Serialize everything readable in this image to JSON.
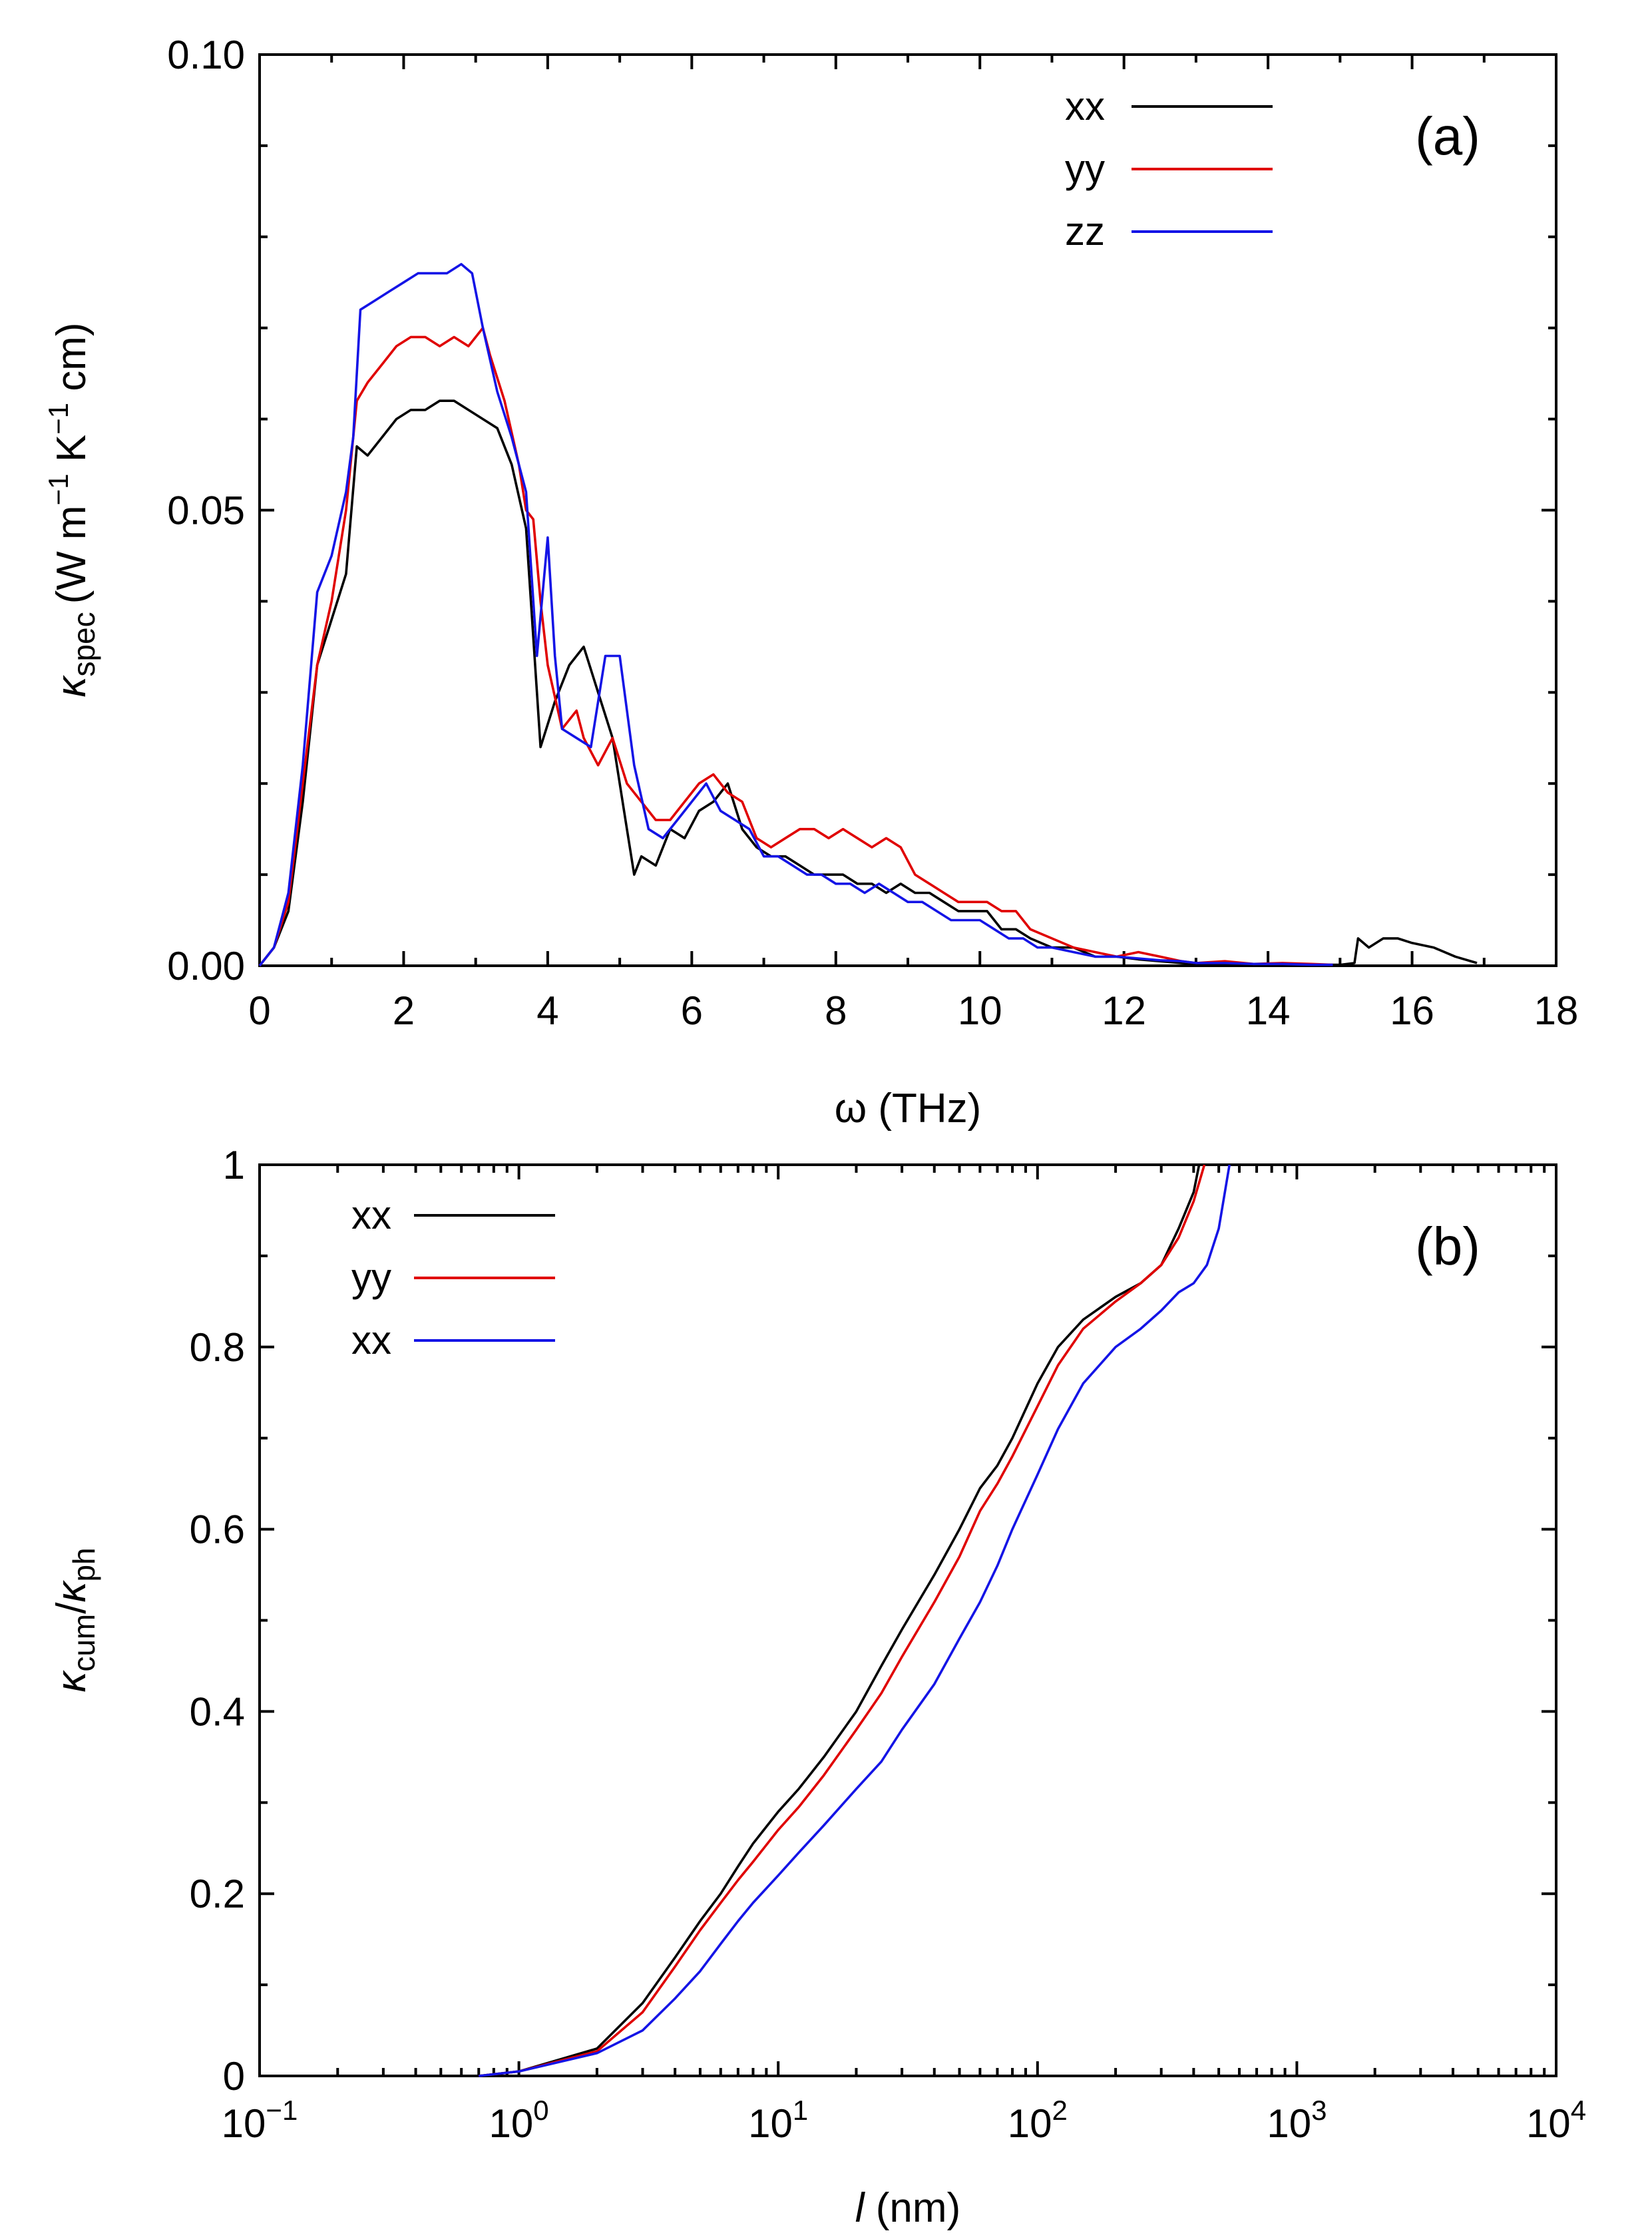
{
  "chart_data": [
    {
      "panel_label": "(a)",
      "type": "line",
      "xlabel": "ω (THz)",
      "ylabel_parts": {
        "symbol": "κ",
        "sub": "spec",
        "unit": "(W m",
        "exp1": "−1",
        "mid": " K",
        "exp2": "−1",
        "end": " cm)"
      },
      "xlim": [
        0,
        18
      ],
      "ylim": [
        0,
        0.1
      ],
      "xticks": [
        0,
        2,
        4,
        6,
        8,
        10,
        12,
        14,
        16,
        18
      ],
      "xtick_labels": [
        "0",
        "2",
        "4",
        "6",
        "8",
        "10",
        "12",
        "14",
        "16",
        "18"
      ],
      "yticks": [
        0.0,
        0.05,
        0.1
      ],
      "ytick_labels": [
        "0.00",
        "0.05",
        "0.10"
      ],
      "legend_position": "top-center",
      "series": [
        {
          "name": "xx",
          "color": "#000000",
          "x": [
            0,
            0.2,
            0.4,
            0.6,
            0.8,
            1.0,
            1.2,
            1.35,
            1.5,
            1.7,
            1.9,
            2.1,
            2.3,
            2.5,
            2.7,
            2.9,
            3.1,
            3.3,
            3.5,
            3.7,
            3.85,
            3.9,
            4.1,
            4.3,
            4.5,
            4.7,
            4.9,
            5.1,
            5.2,
            5.3,
            5.5,
            5.7,
            5.9,
            6.1,
            6.3,
            6.5,
            6.7,
            6.9,
            7.1,
            7.3,
            7.5,
            7.7,
            7.9,
            8.1,
            8.3,
            8.5,
            8.7,
            8.9,
            9.1,
            9.3,
            9.5,
            9.7,
            9.9,
            10.1,
            10.3,
            10.5,
            10.7,
            11.0,
            11.3,
            11.6,
            11.9,
            12.2,
            12.5,
            12.8,
            13.0,
            13.4,
            13.8,
            14.2,
            14.6,
            15.0,
            15.2,
            15.25,
            15.4,
            15.6,
            15.8,
            16.0,
            16.3,
            16.6,
            16.9
          ],
          "y": [
            0,
            0.002,
            0.006,
            0.018,
            0.033,
            0.038,
            0.043,
            0.057,
            0.056,
            0.058,
            0.06,
            0.061,
            0.061,
            0.062,
            0.062,
            0.061,
            0.06,
            0.059,
            0.055,
            0.048,
            0.03,
            0.024,
            0.029,
            0.033,
            0.035,
            0.03,
            0.025,
            0.015,
            0.01,
            0.012,
            0.011,
            0.015,
            0.014,
            0.017,
            0.018,
            0.02,
            0.015,
            0.013,
            0.012,
            0.012,
            0.011,
            0.01,
            0.01,
            0.01,
            0.009,
            0.009,
            0.008,
            0.009,
            0.008,
            0.008,
            0.007,
            0.006,
            0.006,
            0.006,
            0.004,
            0.004,
            0.003,
            0.002,
            0.002,
            0.001,
            0.001,
            0.0007,
            0.0005,
            0.0003,
            0.0002,
            0.0002,
            0.0002,
            0.0001,
            0.0001,
            0.0001,
            0.0003,
            0.003,
            0.002,
            0.003,
            0.003,
            0.0025,
            0.002,
            0.001,
            0.0003
          ]
        },
        {
          "name": "yy",
          "color": "#e00000",
          "x": [
            0,
            0.2,
            0.4,
            0.6,
            0.8,
            1.0,
            1.2,
            1.35,
            1.5,
            1.7,
            1.9,
            2.1,
            2.3,
            2.5,
            2.7,
            2.9,
            3.0,
            3.1,
            3.2,
            3.4,
            3.6,
            3.7,
            3.8,
            3.9,
            4.0,
            4.2,
            4.4,
            4.5,
            4.7,
            4.9,
            5.1,
            5.3,
            5.5,
            5.7,
            5.9,
            6.1,
            6.3,
            6.5,
            6.7,
            6.9,
            7.1,
            7.3,
            7.5,
            7.7,
            7.9,
            8.1,
            8.3,
            8.5,
            8.7,
            8.9,
            9.1,
            9.3,
            9.5,
            9.7,
            9.9,
            10.1,
            10.3,
            10.5,
            10.7,
            11.0,
            11.3,
            11.6,
            11.9,
            12.2,
            12.5,
            12.8,
            13.0,
            13.4,
            13.8,
            14.2,
            14.6,
            14.9
          ],
          "y": [
            0,
            0.002,
            0.007,
            0.02,
            0.033,
            0.04,
            0.05,
            0.062,
            0.064,
            0.066,
            0.068,
            0.069,
            0.069,
            0.068,
            0.069,
            0.068,
            0.069,
            0.07,
            0.067,
            0.062,
            0.055,
            0.05,
            0.049,
            0.04,
            0.033,
            0.026,
            0.028,
            0.025,
            0.022,
            0.025,
            0.02,
            0.018,
            0.016,
            0.016,
            0.018,
            0.02,
            0.021,
            0.019,
            0.018,
            0.014,
            0.013,
            0.014,
            0.015,
            0.015,
            0.014,
            0.015,
            0.014,
            0.013,
            0.014,
            0.013,
            0.01,
            0.009,
            0.008,
            0.007,
            0.007,
            0.007,
            0.006,
            0.006,
            0.004,
            0.003,
            0.002,
            0.0015,
            0.001,
            0.0015,
            0.001,
            0.0005,
            0.0003,
            0.0005,
            0.0002,
            0.0003,
            0.0002,
            0.0001
          ]
        },
        {
          "name": "zz",
          "color": "#1414e6",
          "x": [
            0,
            0.2,
            0.4,
            0.6,
            0.8,
            1.0,
            1.2,
            1.3,
            1.4,
            1.6,
            1.8,
            2.0,
            2.2,
            2.4,
            2.6,
            2.8,
            2.95,
            3.1,
            3.3,
            3.5,
            3.7,
            3.85,
            4.0,
            4.1,
            4.2,
            4.4,
            4.6,
            4.8,
            5.0,
            5.2,
            5.4,
            5.6,
            5.8,
            6.0,
            6.2,
            6.4,
            6.6,
            6.8,
            7.0,
            7.2,
            7.4,
            7.6,
            7.8,
            8.0,
            8.2,
            8.4,
            8.6,
            8.8,
            9.0,
            9.2,
            9.4,
            9.6,
            9.8,
            10.0,
            10.2,
            10.4,
            10.6,
            10.8,
            11.0,
            11.3,
            11.6,
            11.9,
            12.2,
            12.5,
            12.8,
            13.0,
            13.4,
            13.8,
            14.2,
            14.6,
            14.9
          ],
          "y": [
            0,
            0.002,
            0.008,
            0.022,
            0.041,
            0.045,
            0.052,
            0.058,
            0.072,
            0.073,
            0.074,
            0.075,
            0.076,
            0.076,
            0.076,
            0.077,
            0.076,
            0.07,
            0.063,
            0.058,
            0.052,
            0.034,
            0.047,
            0.034,
            0.026,
            0.025,
            0.024,
            0.034,
            0.034,
            0.022,
            0.015,
            0.014,
            0.016,
            0.018,
            0.02,
            0.017,
            0.016,
            0.015,
            0.012,
            0.012,
            0.011,
            0.01,
            0.01,
            0.009,
            0.009,
            0.008,
            0.009,
            0.008,
            0.007,
            0.007,
            0.006,
            0.005,
            0.005,
            0.005,
            0.004,
            0.003,
            0.003,
            0.002,
            0.002,
            0.0015,
            0.001,
            0.001,
            0.0008,
            0.0006,
            0.0005,
            0.0003,
            0.0003,
            0.0002,
            0.0002,
            0.0001,
            0.0001
          ]
        }
      ]
    },
    {
      "panel_label": "(b)",
      "type": "line",
      "xscale": "log",
      "xlabel_parts": {
        "symbol": "l",
        "unit": " (nm)"
      },
      "ylabel_parts": {
        "symbol1": "κ",
        "sub1": "cum",
        "slash": "/",
        "symbol2": "κ",
        "sub2": "ph"
      },
      "xlim": [
        0.1,
        10000
      ],
      "ylim": [
        0,
        1
      ],
      "xtick_exponents": [
        "−1",
        "0",
        "1",
        "2",
        "3",
        "4"
      ],
      "xtick_base": "10",
      "yticks": [
        0,
        0.2,
        0.4,
        0.6,
        0.8,
        1
      ],
      "ytick_labels": [
        "0",
        "0.2",
        "0.4",
        "0.6",
        "0.8",
        "1"
      ],
      "legend_position": "top-left",
      "series": [
        {
          "name": "xx",
          "color": "#000000",
          "x": [
            0.7,
            1,
            2,
            3,
            4,
            5,
            6,
            7,
            8,
            10,
            12,
            15,
            20,
            25,
            30,
            40,
            50,
            60,
            70,
            80,
            100,
            120,
            150,
            200,
            250,
            300,
            350,
            400,
            420
          ],
          "y": [
            0,
            0.005,
            0.03,
            0.08,
            0.13,
            0.17,
            0.2,
            0.23,
            0.255,
            0.29,
            0.315,
            0.35,
            0.4,
            0.45,
            0.49,
            0.55,
            0.6,
            0.645,
            0.67,
            0.7,
            0.76,
            0.8,
            0.83,
            0.855,
            0.87,
            0.89,
            0.93,
            0.97,
            1.0
          ]
        },
        {
          "name": "yy",
          "color": "#e00000",
          "x": [
            0.7,
            1,
            2,
            3,
            4,
            5,
            6,
            7,
            8,
            10,
            12,
            15,
            20,
            25,
            30,
            40,
            50,
            60,
            70,
            80,
            100,
            120,
            150,
            200,
            250,
            300,
            350,
            400,
            440
          ],
          "y": [
            0,
            0.005,
            0.027,
            0.07,
            0.12,
            0.16,
            0.19,
            0.215,
            0.235,
            0.27,
            0.295,
            0.33,
            0.38,
            0.42,
            0.46,
            0.52,
            0.57,
            0.62,
            0.65,
            0.68,
            0.735,
            0.78,
            0.82,
            0.85,
            0.87,
            0.89,
            0.92,
            0.96,
            1.0
          ]
        },
        {
          "name": "xx",
          "color": "#1414e6",
          "x": [
            0.7,
            1,
            2,
            3,
            4,
            5,
            6,
            7,
            8,
            10,
            12,
            15,
            20,
            25,
            30,
            40,
            50,
            60,
            70,
            80,
            100,
            120,
            150,
            200,
            250,
            300,
            350,
            400,
            450,
            500,
            550
          ],
          "y": [
            0,
            0.005,
            0.025,
            0.05,
            0.085,
            0.115,
            0.145,
            0.17,
            0.19,
            0.22,
            0.245,
            0.275,
            0.315,
            0.345,
            0.38,
            0.43,
            0.48,
            0.52,
            0.56,
            0.6,
            0.66,
            0.71,
            0.76,
            0.8,
            0.82,
            0.84,
            0.86,
            0.87,
            0.89,
            0.93,
            1.0
          ]
        }
      ]
    }
  ]
}
